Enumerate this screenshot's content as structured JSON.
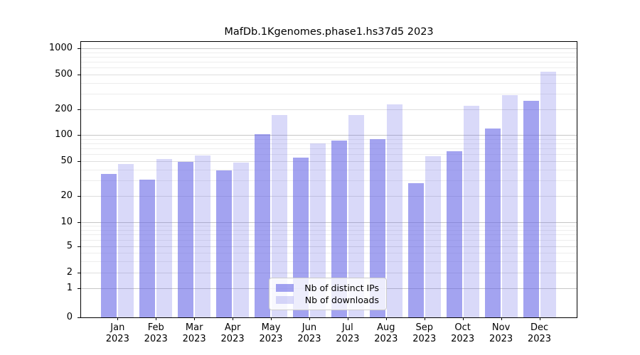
{
  "title": "MafDb.1Kgenomes.phase1.hs37d5 2023",
  "chart_data": {
    "type": "bar",
    "title": "MafDb.1Kgenomes.phase1.hs37d5 2023",
    "categories": [
      "Jan",
      "Feb",
      "Mar",
      "Apr",
      "May",
      "Jun",
      "Jul",
      "Aug",
      "Sep",
      "Oct",
      "Nov",
      "Dec"
    ],
    "year": "2023",
    "series": [
      {
        "name": "Nb of distinct IPs",
        "color": "#6666e6",
        "alpha": 0.6,
        "values": [
          36,
          31,
          49,
          39,
          101,
          55,
          86,
          90,
          28,
          65,
          120,
          250
        ]
      },
      {
        "name": "Nb of downloads",
        "color": "#6666e6",
        "alpha": 0.25,
        "values": [
          46,
          53,
          58,
          48,
          172,
          80,
          172,
          228,
          57,
          220,
          290,
          535
        ]
      }
    ],
    "yaxis": {
      "scale": "log above 1, linear 0-1",
      "ticks": [
        {
          "label": "1000",
          "value": 1000,
          "pos": 9
        },
        {
          "label": "500",
          "value": 500,
          "pos": 46
        },
        {
          "label": "200",
          "value": 200,
          "pos": 95
        },
        {
          "label": "100",
          "value": 100,
          "pos": 131
        },
        {
          "label": "50",
          "value": 50,
          "pos": 168
        },
        {
          "label": "20",
          "value": 20,
          "pos": 217
        },
        {
          "label": "10",
          "value": 10,
          "pos": 254
        },
        {
          "label": "5",
          "value": 5,
          "pos": 288
        },
        {
          "label": "2",
          "value": 2,
          "pos": 325
        },
        {
          "label": "1",
          "value": 1,
          "pos": 347
        },
        {
          "label": "0",
          "value": 0,
          "pos": 388
        }
      ],
      "minor_values": [
        3,
        4,
        6,
        7,
        8,
        9,
        30,
        40,
        60,
        70,
        80,
        90,
        300,
        400,
        600,
        700,
        800,
        900
      ]
    },
    "grid": true,
    "legend": {
      "position": "lower center",
      "items": [
        "Nb of distinct IPs",
        "Nb of downloads"
      ]
    }
  },
  "colors": {
    "bar_base": "#6666e6",
    "grid_major": "#c6c6c6",
    "grid_labeled": "#dedede",
    "grid_minor": "#ededed",
    "axis": "#000000",
    "legend_border": "#cccccc"
  }
}
